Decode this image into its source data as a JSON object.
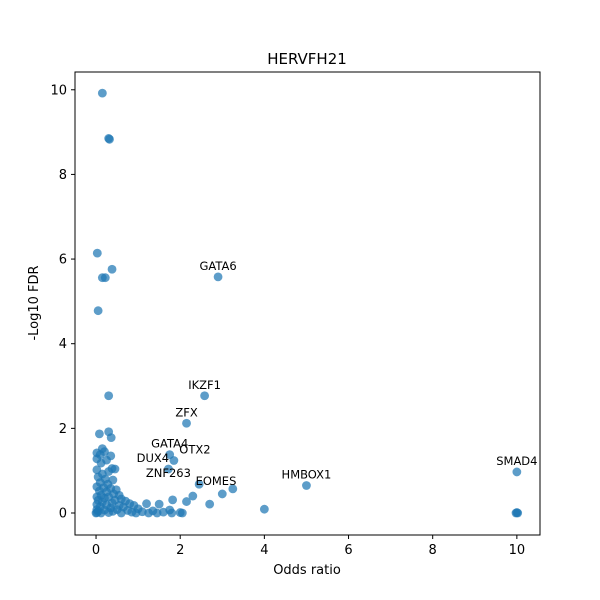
{
  "chart_data": {
    "type": "scatter",
    "title": "HERVFH21",
    "xlabel": "Odds ratio",
    "ylabel": "-Log10 FDR",
    "xlim": [
      -0.5,
      10.55
    ],
    "ylim": [
      -0.52,
      10.42
    ],
    "x_ticks": [
      0,
      2,
      4,
      6,
      8,
      10
    ],
    "y_ticks": [
      0,
      2,
      4,
      6,
      8,
      10
    ],
    "grid": false,
    "color": "#1f77b4",
    "points": [
      {
        "x": 0.15,
        "y": 9.92
      },
      {
        "x": 0.3,
        "y": 8.85
      },
      {
        "x": 0.32,
        "y": 8.83
      },
      {
        "x": 0.03,
        "y": 6.14
      },
      {
        "x": 0.38,
        "y": 5.76
      },
      {
        "x": 0.15,
        "y": 5.56
      },
      {
        "x": 0.22,
        "y": 5.56
      },
      {
        "x": 0.05,
        "y": 4.78
      },
      {
        "x": 2.9,
        "y": 5.58
      },
      {
        "x": 0.3,
        "y": 2.77
      },
      {
        "x": 2.58,
        "y": 2.77
      },
      {
        "x": 2.15,
        "y": 2.12
      },
      {
        "x": 0.08,
        "y": 1.87
      },
      {
        "x": 0.3,
        "y": 1.92
      },
      {
        "x": 0.36,
        "y": 1.78
      },
      {
        "x": 0.15,
        "y": 1.52
      },
      {
        "x": 0.2,
        "y": 1.45
      },
      {
        "x": 0.02,
        "y": 1.42
      },
      {
        "x": 0.1,
        "y": 1.38
      },
      {
        "x": 0.35,
        "y": 1.35
      },
      {
        "x": 1.75,
        "y": 1.38
      },
      {
        "x": 1.85,
        "y": 1.24
      },
      {
        "x": 0.02,
        "y": 1.28
      },
      {
        "x": 0.25,
        "y": 1.25
      },
      {
        "x": 0.12,
        "y": 1.18
      },
      {
        "x": 1.72,
        "y": 1.04
      },
      {
        "x": 0.02,
        "y": 1.02
      },
      {
        "x": 0.38,
        "y": 1.05
      },
      {
        "x": 0.45,
        "y": 1.04
      },
      {
        "x": 0.3,
        "y": 0.98
      },
      {
        "x": 0.15,
        "y": 0.92
      },
      {
        "x": 0.05,
        "y": 0.85
      },
      {
        "x": 0.22,
        "y": 0.8
      },
      {
        "x": 0.4,
        "y": 0.78
      },
      {
        "x": 0.1,
        "y": 0.72
      },
      {
        "x": 0.28,
        "y": 0.68
      },
      {
        "x": 2.45,
        "y": 0.68
      },
      {
        "x": 5.0,
        "y": 0.65
      },
      {
        "x": 0.02,
        "y": 0.62
      },
      {
        "x": 0.18,
        "y": 0.6
      },
      {
        "x": 0.35,
        "y": 0.58
      },
      {
        "x": 3.25,
        "y": 0.57
      },
      {
        "x": 0.48,
        "y": 0.55
      },
      {
        "x": 0.08,
        "y": 0.52
      },
      {
        "x": 0.25,
        "y": 0.5
      },
      {
        "x": 3.0,
        "y": 0.45
      },
      {
        "x": 0.42,
        "y": 0.45
      },
      {
        "x": 0.12,
        "y": 0.42
      },
      {
        "x": 0.55,
        "y": 0.42
      },
      {
        "x": 2.3,
        "y": 0.4
      },
      {
        "x": 0.02,
        "y": 0.38
      },
      {
        "x": 0.3,
        "y": 0.38
      },
      {
        "x": 0.2,
        "y": 0.35
      },
      {
        "x": 0.6,
        "y": 0.33
      },
      {
        "x": 1.82,
        "y": 0.31
      },
      {
        "x": 0.05,
        "y": 0.3
      },
      {
        "x": 0.45,
        "y": 0.3
      },
      {
        "x": 0.7,
        "y": 0.28
      },
      {
        "x": 2.15,
        "y": 0.27
      },
      {
        "x": 0.15,
        "y": 0.26
      },
      {
        "x": 0.38,
        "y": 0.24
      },
      {
        "x": 0.8,
        "y": 0.22
      },
      {
        "x": 1.2,
        "y": 0.22
      },
      {
        "x": 1.5,
        "y": 0.21
      },
      {
        "x": 2.7,
        "y": 0.21
      },
      {
        "x": 0.02,
        "y": 0.2
      },
      {
        "x": 0.25,
        "y": 0.19
      },
      {
        "x": 0.55,
        "y": 0.18
      },
      {
        "x": 0.9,
        "y": 0.18
      },
      {
        "x": 0.1,
        "y": 0.15
      },
      {
        "x": 0.65,
        "y": 0.14
      },
      {
        "x": 0.35,
        "y": 0.12
      },
      {
        "x": 1.0,
        "y": 0.1
      },
      {
        "x": 4.0,
        "y": 0.09
      },
      {
        "x": 0.02,
        "y": 0.08
      },
      {
        "x": 0.5,
        "y": 0.08
      },
      {
        "x": 0.2,
        "y": 0.07
      },
      {
        "x": 1.75,
        "y": 0.07
      },
      {
        "x": 0.75,
        "y": 0.06
      },
      {
        "x": 1.35,
        "y": 0.05
      },
      {
        "x": 0.05,
        "y": 0.04
      },
      {
        "x": 0.4,
        "y": 0.04
      },
      {
        "x": 1.1,
        "y": 0.03
      },
      {
        "x": 0.85,
        "y": 0.02
      },
      {
        "x": 1.6,
        "y": 0.02
      },
      {
        "x": 0.02,
        "y": 0.01
      },
      {
        "x": 0.3,
        "y": 0.01
      },
      {
        "x": 0.6,
        "y": 0.0
      },
      {
        "x": 0.95,
        "y": 0.0
      },
      {
        "x": 1.25,
        "y": 0.0
      },
      {
        "x": 1.45,
        "y": 0.0
      },
      {
        "x": 1.8,
        "y": 0.0
      },
      {
        "x": 2.05,
        "y": 0.0
      },
      {
        "x": 2.0,
        "y": 0.01
      },
      {
        "x": 0.0,
        "y": 0.0
      },
      {
        "x": 0.12,
        "y": 0.0
      },
      {
        "x": 9.98,
        "y": 0.0
      },
      {
        "x": 10.0,
        "y": 0.01
      },
      {
        "x": 10.02,
        "y": 0.0
      },
      {
        "x": 10.0,
        "y": 0.97
      }
    ],
    "annotations": [
      {
        "text": "GATA6",
        "x": 2.9,
        "y": 5.58
      },
      {
        "text": "IKZF1",
        "x": 2.58,
        "y": 2.77
      },
      {
        "text": "ZFX",
        "x": 2.15,
        "y": 2.12
      },
      {
        "text": "GATA4",
        "x": 1.75,
        "y": 1.38
      },
      {
        "text": "OTX2",
        "x": 2.35,
        "y": 1.24
      },
      {
        "text": "DUX4",
        "x": 1.35,
        "y": 1.04
      },
      {
        "text": "HMBOX1",
        "x": 5.0,
        "y": 0.65
      },
      {
        "text": "SMAD4",
        "x": 10.0,
        "y": 0.97
      },
      {
        "text": "ZNF263",
        "x": 1.72,
        "y": 0.68
      },
      {
        "text": "EOMES",
        "x": 2.85,
        "y": 0.5
      }
    ]
  }
}
